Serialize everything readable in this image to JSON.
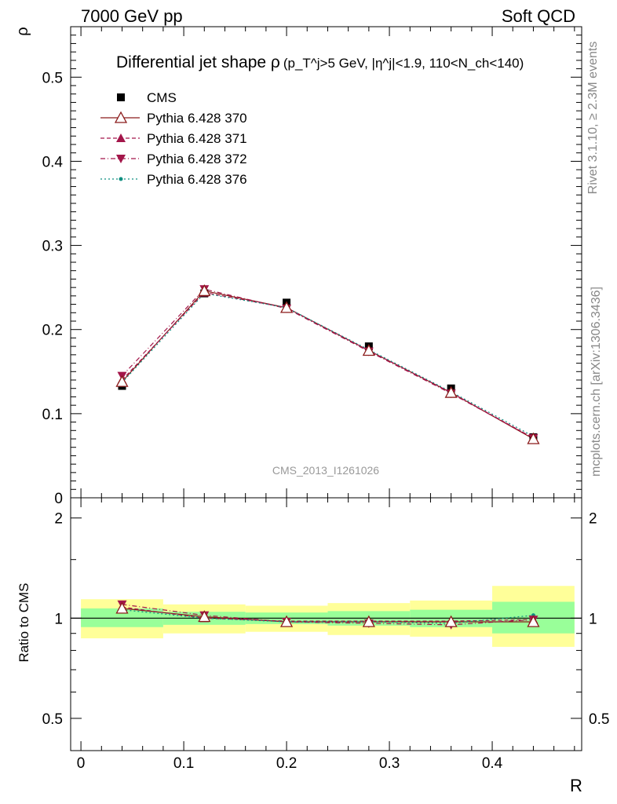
{
  "header": {
    "left": "7000 GeV pp",
    "right": "Soft QCD"
  },
  "side_labels": {
    "rivet": "Rivet 3.1.10, ≥ 2.3M events",
    "mcplots": "mcplots.cern.ch [arXiv:1306.3436]"
  },
  "chart_data": {
    "type": "line",
    "title_main": "Differential jet shape ρ",
    "title_cuts": "(p_T^j>5 GeV, |η^j|<1.9, 110<N_ch<140)",
    "watermark": "CMS_2013_I1261026",
    "xlabel": "R",
    "ylabel": "ρ",
    "ratio_ylabel": "Ratio to CMS",
    "xlim": [
      -0.01,
      0.487
    ],
    "ylim": [
      0,
      0.56
    ],
    "ratio_ylim": [
      0.4,
      2.3
    ],
    "x_ticks": [
      "0",
      "0.1",
      "0.2",
      "0.3",
      "0.4"
    ],
    "y_ticks": [
      "0",
      "0.1",
      "0.2",
      "0.3",
      "0.4",
      "0.5"
    ],
    "ratio_ticks": [
      "0.5",
      "1",
      "2"
    ],
    "x": [
      0.04,
      0.12,
      0.2,
      0.28,
      0.36,
      0.44
    ],
    "bin_edges": [
      0,
      0.08,
      0.16,
      0.24,
      0.32,
      0.4,
      0.48
    ],
    "data": {
      "name": "CMS",
      "values": [
        0.133,
        0.243,
        0.232,
        0.18,
        0.13,
        0.072
      ],
      "band_inner": [
        [
          0.94,
          1.07
        ],
        [
          0.955,
          1.045
        ],
        [
          0.96,
          1.04
        ],
        [
          0.95,
          1.05
        ],
        [
          0.94,
          1.06
        ],
        [
          0.9,
          1.12
        ]
      ],
      "band_outer": [
        [
          0.87,
          1.14
        ],
        [
          0.9,
          1.1
        ],
        [
          0.91,
          1.09
        ],
        [
          0.89,
          1.11
        ],
        [
          0.88,
          1.13
        ],
        [
          0.82,
          1.25
        ]
      ]
    },
    "series": [
      {
        "name": "Pythia 6.428 370",
        "color": "#8b1a1a",
        "dash": "",
        "marker": "triangle-up-open",
        "values": [
          0.138,
          0.246,
          0.226,
          0.175,
          0.125,
          0.07
        ],
        "ratio": [
          1.07,
          1.01,
          0.975,
          0.975,
          0.975,
          0.975
        ]
      },
      {
        "name": "Pythia 6.428 371",
        "color": "#a3164a",
        "dash": "5,3",
        "marker": "triangle-up",
        "values": [
          0.14,
          0.244,
          0.226,
          0.175,
          0.125,
          0.071
        ],
        "ratio": [
          1.08,
          1.0,
          0.98,
          0.98,
          0.98,
          0.99
        ]
      },
      {
        "name": "Pythia 6.428 372",
        "color": "#a3164a",
        "dash": "6,3,1,3",
        "marker": "triangle-down",
        "values": [
          0.145,
          0.248,
          0.225,
          0.174,
          0.124,
          0.071
        ],
        "ratio": [
          1.1,
          1.02,
          0.975,
          0.965,
          0.955,
          0.99
        ]
      },
      {
        "name": "Pythia 6.428 376",
        "color": "#0f8f80",
        "dash": "2,3",
        "marker": "dot",
        "values": [
          0.137,
          0.243,
          0.226,
          0.176,
          0.126,
          0.073
        ],
        "ratio": [
          1.06,
          1.0,
          0.975,
          0.975,
          0.965,
          1.02
        ]
      }
    ],
    "colors": {
      "band_inner": "#99ff99",
      "band_outer": "#ffff99"
    }
  }
}
